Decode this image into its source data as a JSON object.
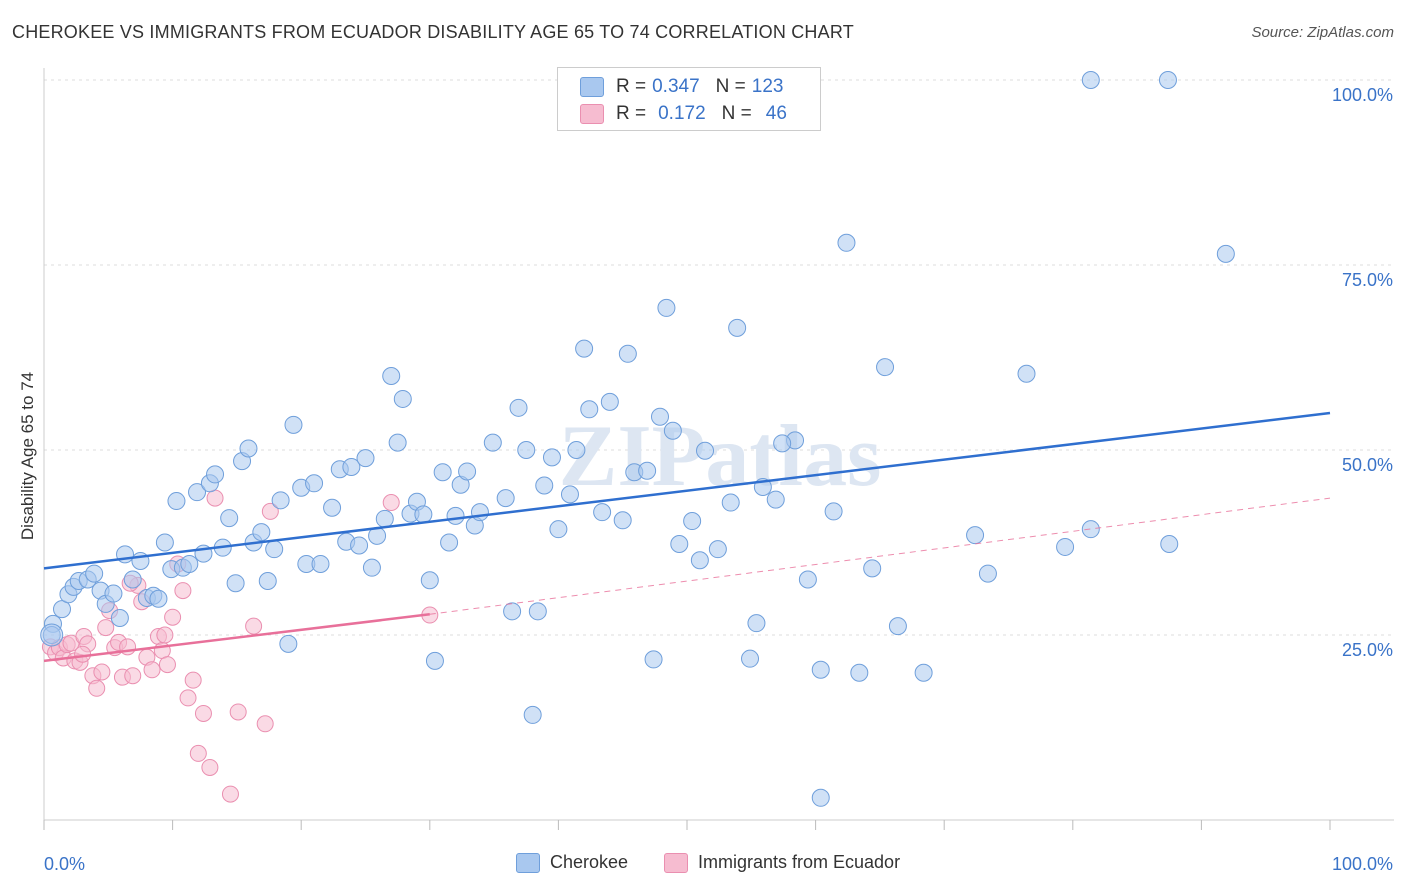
{
  "title": "CHEROKEE VS IMMIGRANTS FROM ECUADOR DISABILITY AGE 65 TO 74 CORRELATION CHART",
  "source": "Source: ZipAtlas.com",
  "watermark": "ZIPatlas",
  "colors": {
    "cherokee_fill": "#a9c8ef",
    "cherokee_stroke": "#6f9fdb",
    "cherokee_line": "#2f6fcf",
    "ecuador_fill": "#f6bcd0",
    "ecuador_stroke": "#ea8fb0",
    "ecuador_line": "#e8709a",
    "value_text": "#3a73c8",
    "grid": "#dddddd"
  },
  "legend_top": {
    "rows": [
      {
        "r_label": "R =",
        "r_value": "0.347",
        "n_label": "N =",
        "n_value": "123"
      },
      {
        "r_label": "R =",
        "r_value": "0.172",
        "n_label": "N =",
        "n_value": "46"
      }
    ]
  },
  "legend_bottom": {
    "items": [
      "Cherokee",
      "Immigrants from Ecuador"
    ]
  },
  "chart_data": {
    "type": "scatter",
    "title": "CHEROKEE VS IMMIGRANTS FROM ECUADOR DISABILITY AGE 65 TO 74 CORRELATION CHART",
    "xlabel": "",
    "ylabel": "Disability Age 65 to 74",
    "xlim": [
      0,
      100
    ],
    "ylim": [
      0,
      102
    ],
    "x_tick_labels": [
      "0.0%",
      "100.0%"
    ],
    "y_tick_labels": [
      "25.0%",
      "50.0%",
      "75.0%",
      "100.0%"
    ],
    "y_ticks": [
      25,
      50,
      75,
      100
    ],
    "grid": true,
    "legend_position": "bottom",
    "series": [
      {
        "name": "Cherokee",
        "r": 0.347,
        "n": 123,
        "trend": {
          "x": [
            0,
            100
          ],
          "y": [
            34.0,
            55.0
          ]
        },
        "points": [
          [
            0.7,
            26.5
          ],
          [
            0.6,
            25.0
          ],
          [
            1.4,
            28.5
          ],
          [
            1.9,
            30.5
          ],
          [
            2.3,
            31.5
          ],
          [
            2.7,
            32.3
          ],
          [
            3.4,
            32.5
          ],
          [
            3.9,
            33.3
          ],
          [
            4.4,
            31.0
          ],
          [
            4.8,
            29.2
          ],
          [
            5.4,
            30.6
          ],
          [
            5.9,
            27.3
          ],
          [
            6.3,
            35.9
          ],
          [
            6.9,
            32.5
          ],
          [
            7.5,
            35.0
          ],
          [
            8.0,
            30.0
          ],
          [
            8.5,
            30.3
          ],
          [
            8.9,
            29.9
          ],
          [
            9.4,
            37.5
          ],
          [
            9.9,
            33.9
          ],
          [
            10.3,
            43.1
          ],
          [
            10.8,
            34.1
          ],
          [
            11.3,
            34.6
          ],
          [
            11.9,
            44.3
          ],
          [
            12.4,
            36.0
          ],
          [
            12.9,
            45.5
          ],
          [
            13.3,
            46.7
          ],
          [
            13.9,
            36.8
          ],
          [
            14.4,
            40.8
          ],
          [
            14.9,
            32.0
          ],
          [
            15.4,
            48.5
          ],
          [
            15.9,
            50.2
          ],
          [
            16.3,
            37.5
          ],
          [
            16.9,
            38.9
          ],
          [
            17.4,
            32.3
          ],
          [
            17.9,
            36.6
          ],
          [
            18.4,
            43.2
          ],
          [
            19.0,
            23.8
          ],
          [
            19.4,
            53.4
          ],
          [
            20.0,
            44.9
          ],
          [
            20.4,
            34.6
          ],
          [
            21.0,
            45.5
          ],
          [
            21.5,
            34.6
          ],
          [
            22.4,
            42.2
          ],
          [
            23.0,
            47.4
          ],
          [
            23.5,
            37.6
          ],
          [
            23.9,
            47.7
          ],
          [
            24.5,
            37.1
          ],
          [
            25.0,
            48.9
          ],
          [
            25.5,
            34.1
          ],
          [
            25.9,
            38.4
          ],
          [
            26.5,
            40.7
          ],
          [
            27.0,
            60.0
          ],
          [
            27.5,
            51.0
          ],
          [
            27.9,
            56.9
          ],
          [
            28.5,
            41.4
          ],
          [
            29.0,
            43.0
          ],
          [
            29.5,
            41.3
          ],
          [
            30.0,
            32.4
          ],
          [
            30.4,
            21.5
          ],
          [
            31.0,
            47.0
          ],
          [
            31.5,
            37.5
          ],
          [
            32.0,
            41.1
          ],
          [
            32.4,
            45.3
          ],
          [
            32.9,
            47.1
          ],
          [
            33.5,
            39.8
          ],
          [
            33.9,
            41.6
          ],
          [
            34.9,
            51.0
          ],
          [
            35.9,
            43.5
          ],
          [
            36.4,
            28.2
          ],
          [
            36.9,
            55.7
          ],
          [
            37.5,
            50.0
          ],
          [
            38.0,
            14.2
          ],
          [
            38.4,
            28.2
          ],
          [
            38.9,
            45.2
          ],
          [
            39.5,
            49.0
          ],
          [
            40.0,
            39.3
          ],
          [
            40.9,
            44.0
          ],
          [
            41.4,
            50.0
          ],
          [
            42.0,
            63.7
          ],
          [
            42.4,
            55.5
          ],
          [
            43.4,
            41.6
          ],
          [
            44.0,
            56.5
          ],
          [
            45.0,
            40.5
          ],
          [
            45.4,
            63.0
          ],
          [
            45.9,
            47.0
          ],
          [
            46.9,
            47.2
          ],
          [
            47.4,
            21.7
          ],
          [
            47.9,
            54.5
          ],
          [
            48.4,
            69.2
          ],
          [
            48.9,
            52.6
          ],
          [
            49.4,
            37.3
          ],
          [
            50.4,
            40.4
          ],
          [
            51.0,
            35.1
          ],
          [
            51.4,
            49.9
          ],
          [
            52.4,
            36.6
          ],
          [
            53.4,
            42.9
          ],
          [
            53.9,
            66.5
          ],
          [
            54.9,
            21.8
          ],
          [
            55.4,
            26.6
          ],
          [
            55.9,
            45.0
          ],
          [
            56.9,
            43.3
          ],
          [
            58.4,
            51.3
          ],
          [
            59.4,
            32.5
          ],
          [
            60.4,
            20.3
          ],
          [
            61.4,
            41.7
          ],
          [
            62.4,
            78.0
          ],
          [
            63.4,
            19.9
          ],
          [
            64.4,
            34.0
          ],
          [
            65.4,
            61.2
          ],
          [
            66.4,
            26.2
          ],
          [
            68.4,
            19.9
          ],
          [
            72.4,
            38.5
          ],
          [
            73.4,
            33.3
          ],
          [
            76.4,
            60.3
          ],
          [
            79.4,
            36.9
          ],
          [
            81.4,
            39.3
          ],
          [
            81.4,
            100.0
          ],
          [
            87.5,
            37.3
          ],
          [
            87.4,
            100.0
          ],
          [
            91.9,
            76.5
          ],
          [
            60.4,
            3.0
          ],
          [
            57.4,
            50.9
          ]
        ]
      },
      {
        "name": "Immigrants from Ecuador",
        "r": 0.172,
        "n": 46,
        "trend": {
          "x": [
            0,
            30
          ],
          "y": [
            21.5,
            27.8
          ]
        },
        "trend_dashed": {
          "x": [
            30,
            100
          ],
          "y": [
            27.8,
            43.5
          ]
        },
        "points": [
          [
            0.5,
            23.4
          ],
          [
            0.9,
            22.6
          ],
          [
            1.2,
            23.3
          ],
          [
            1.5,
            21.9
          ],
          [
            1.8,
            23.7
          ],
          [
            2.1,
            23.9
          ],
          [
            2.4,
            21.5
          ],
          [
            2.8,
            21.3
          ],
          [
            3.1,
            24.8
          ],
          [
            3.4,
            23.8
          ],
          [
            3.8,
            19.5
          ],
          [
            4.1,
            17.8
          ],
          [
            4.5,
            20.0
          ],
          [
            4.8,
            26.0
          ],
          [
            5.1,
            28.3
          ],
          [
            5.5,
            23.3
          ],
          [
            5.8,
            24.0
          ],
          [
            6.1,
            19.3
          ],
          [
            6.5,
            23.4
          ],
          [
            6.9,
            19.5
          ],
          [
            7.3,
            31.7
          ],
          [
            7.6,
            29.5
          ],
          [
            8.0,
            22.0
          ],
          [
            8.4,
            20.3
          ],
          [
            8.9,
            24.8
          ],
          [
            9.2,
            22.9
          ],
          [
            9.6,
            21.0
          ],
          [
            10.0,
            27.4
          ],
          [
            10.4,
            34.6
          ],
          [
            10.8,
            31.0
          ],
          [
            11.2,
            16.5
          ],
          [
            11.6,
            18.9
          ],
          [
            12.0,
            9.0
          ],
          [
            12.4,
            14.4
          ],
          [
            12.9,
            7.1
          ],
          [
            13.3,
            43.5
          ],
          [
            14.5,
            3.5
          ],
          [
            15.1,
            14.6
          ],
          [
            16.3,
            26.2
          ],
          [
            17.2,
            13.0
          ],
          [
            17.6,
            41.7
          ],
          [
            27.0,
            42.9
          ],
          [
            30.0,
            27.7
          ],
          [
            9.4,
            25.0
          ],
          [
            6.7,
            32.0
          ],
          [
            3.0,
            22.4
          ]
        ]
      }
    ]
  }
}
